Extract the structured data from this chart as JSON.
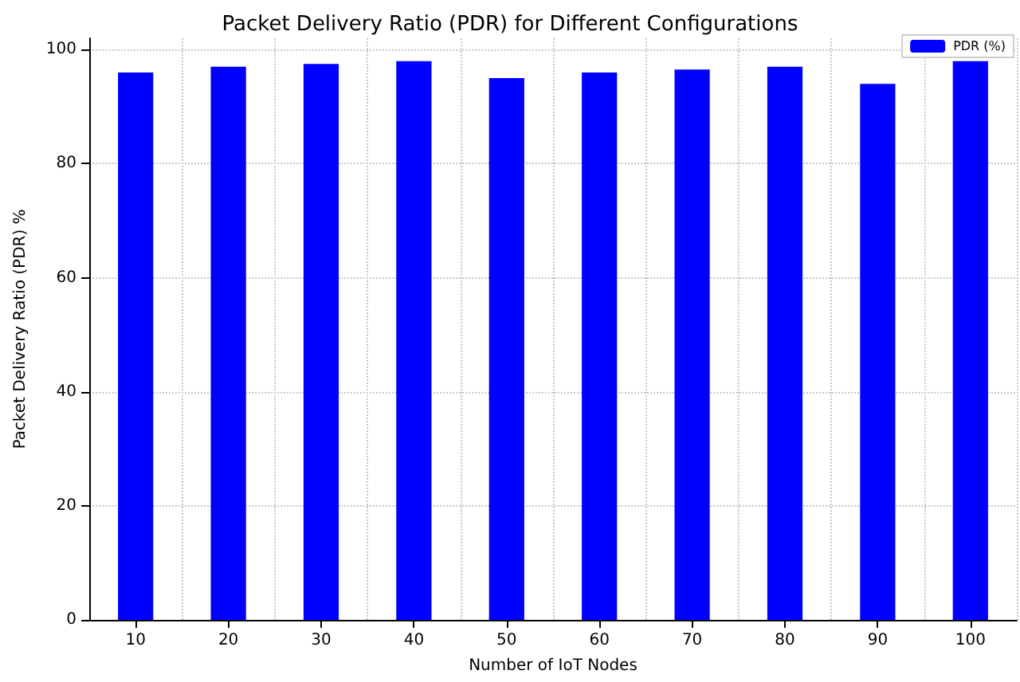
{
  "chart_data": {
    "type": "bar",
    "title": "Packet Delivery Ratio (PDR) for Different Configurations",
    "xlabel": "Number of IoT Nodes",
    "ylabel": "Packet Delivery Ratio (PDR) %",
    "categories": [
      "10",
      "20",
      "30",
      "40",
      "50",
      "60",
      "70",
      "80",
      "90",
      "100"
    ],
    "series": [
      {
        "name": "PDR (%)",
        "color": "#0000ff",
        "values": [
          96,
          97,
          97.5,
          98,
          95,
          96,
          96.5,
          97,
          94,
          98
        ]
      }
    ],
    "ylim": [
      0,
      102
    ],
    "yticks": [
      0,
      20,
      40,
      60,
      80,
      100
    ],
    "grid": true,
    "legend": "top right"
  }
}
